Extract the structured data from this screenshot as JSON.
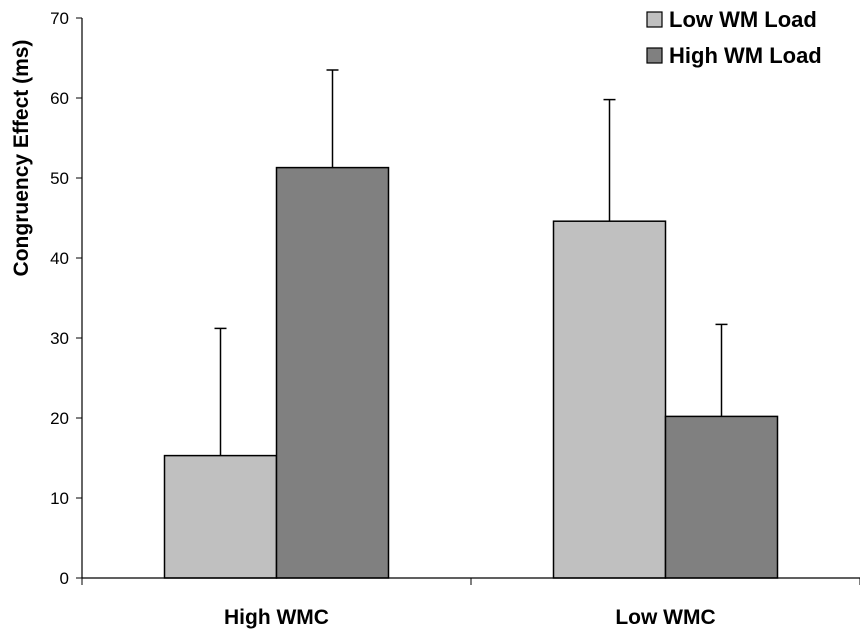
{
  "chart_data": {
    "type": "bar",
    "title": "",
    "xlabel": "",
    "ylabel": "Congruency Effect (ms)",
    "ylim": [
      0,
      70
    ],
    "yticks": [
      0,
      10,
      20,
      30,
      40,
      50,
      60,
      70
    ],
    "categories": [
      "High WMC",
      "Low WMC"
    ],
    "series": [
      {
        "name": "Low WM Load",
        "values": [
          15.3,
          44.6
        ],
        "error_upper": [
          31.2,
          59.8
        ],
        "color": "#c0c0c0"
      },
      {
        "name": "High WM Load",
        "values": [
          51.3,
          20.2
        ],
        "error_upper": [
          63.5,
          31.7
        ],
        "color": "#808080"
      }
    ],
    "grid": false,
    "legend": "top-right"
  }
}
